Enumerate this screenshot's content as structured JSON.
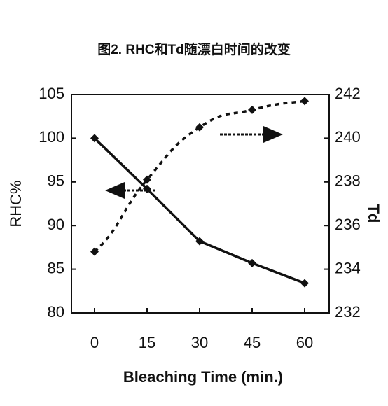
{
  "chart_data": {
    "type": "line",
    "title": "图2. RHC和Td随漂白时间的改变",
    "xlabel": "Bleaching Time (min.)",
    "ylabel": "RHC%",
    "y2label": "Td",
    "x": [
      0,
      15,
      30,
      45,
      60
    ],
    "xlim": [
      -6.6,
      67
    ],
    "xticks": [
      0,
      15,
      30,
      45,
      60
    ],
    "ylim": [
      80,
      105
    ],
    "yticks": [
      80,
      85,
      90,
      95,
      100,
      105
    ],
    "y2lim": [
      232,
      242
    ],
    "y2ticks": [
      232,
      234,
      236,
      238,
      240,
      242
    ],
    "series": [
      {
        "name": "RHC",
        "color": "#111111",
        "values": [
          100,
          94.2,
          88.2,
          85.7,
          83.4
        ]
      },
      {
        "name": "Td",
        "color": "#111111",
        "axis": "y2",
        "values": [
          234.8,
          238.1,
          240.5,
          241.3,
          241.7
        ]
      }
    ]
  }
}
